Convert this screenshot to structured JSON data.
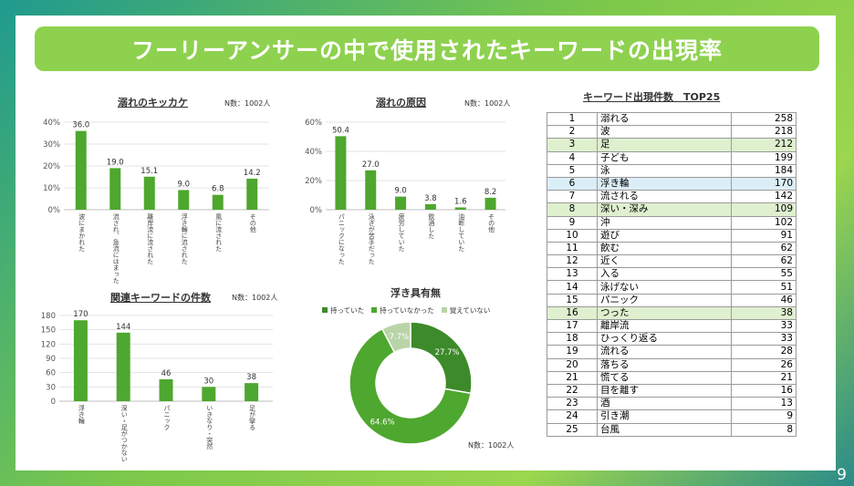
{
  "title": "フーリーアンサーの中で使用されたキーワードの出現率",
  "page_number": "9",
  "colors": {
    "bar": "#4ea72e",
    "banner": "#8ed14f",
    "highlight_green": "#dff0cf",
    "highlight_blue": "#dbeef8"
  },
  "chart_data": [
    {
      "type": "bar",
      "title": "溺れのキッカケ",
      "n_label": "N数：1002人",
      "categories": [
        "波にまかれた",
        "流され、急流にはまった",
        "離岸流に流された",
        "浮き輪に流された",
        "風に流された",
        "その他"
      ],
      "values": [
        36.0,
        19.0,
        15.1,
        9.0,
        6.8,
        14.2
      ],
      "value_labels": [
        "36.0",
        "19.0",
        "15.1",
        "9.0",
        "6.8",
        "14.2"
      ],
      "yticks": [
        "0%",
        "10%",
        "20%",
        "30%",
        "40%"
      ],
      "ylim": [
        0,
        40
      ]
    },
    {
      "type": "bar",
      "title": "溺れの原因",
      "n_label": "N数：1002人",
      "categories": [
        "パニックになった",
        "泳ぎが苦手だった",
        "疲労していた",
        "飲酒した",
        "油断していた",
        "その他"
      ],
      "values": [
        50.4,
        27.0,
        9.0,
        3.8,
        1.6,
        8.2
      ],
      "value_labels": [
        "50.4",
        "27.0",
        "9.0",
        "3.8",
        "1.6",
        "8.2"
      ],
      "yticks": [
        "0%",
        "20%",
        "40%",
        "60%"
      ],
      "ylim": [
        0,
        60
      ]
    },
    {
      "type": "bar",
      "title": "関連キーワードの件数",
      "n_label": "N数：1002人",
      "categories": [
        "浮き輪",
        "深い・足がつかない",
        "パニック",
        "いきなり・突然",
        "足が攣る"
      ],
      "values": [
        170,
        144,
        46,
        30,
        38
      ],
      "value_labels": [
        "170",
        "144",
        "46",
        "30",
        "38"
      ],
      "yticks": [
        "0",
        "30",
        "60",
        "90",
        "120",
        "150",
        "180"
      ],
      "ylim": [
        0,
        180
      ]
    },
    {
      "type": "pie",
      "title": "浮き具有無",
      "n_label": "N数：1002人",
      "legend": [
        "持っていた",
        "持っていなかった",
        "覚えていない"
      ],
      "values": [
        27.7,
        64.6,
        7.7
      ],
      "value_labels": [
        "27.7%",
        "64.6%",
        "7.7%"
      ],
      "colors": [
        "#3d8a2a",
        "#4ea72e",
        "#b9d5a8"
      ]
    }
  ],
  "keyword_table": {
    "title": "キーワード出現件数　TOP25",
    "rows": [
      {
        "rank": "1",
        "word": "溺れる",
        "count": "258",
        "hl": ""
      },
      {
        "rank": "2",
        "word": "波",
        "count": "218",
        "hl": ""
      },
      {
        "rank": "3",
        "word": "足",
        "count": "212",
        "hl": "green"
      },
      {
        "rank": "4",
        "word": "子ども",
        "count": "199",
        "hl": ""
      },
      {
        "rank": "5",
        "word": "泳",
        "count": "184",
        "hl": ""
      },
      {
        "rank": "6",
        "word": "浮き輪",
        "count": "170",
        "hl": "blue"
      },
      {
        "rank": "7",
        "word": "流される",
        "count": "142",
        "hl": ""
      },
      {
        "rank": "8",
        "word": "深い・深み",
        "count": "109",
        "hl": "green"
      },
      {
        "rank": "9",
        "word": "沖",
        "count": "102",
        "hl": ""
      },
      {
        "rank": "10",
        "word": "遊び",
        "count": "91",
        "hl": ""
      },
      {
        "rank": "11",
        "word": "飲む",
        "count": "62",
        "hl": ""
      },
      {
        "rank": "12",
        "word": "近く",
        "count": "62",
        "hl": ""
      },
      {
        "rank": "13",
        "word": "入る",
        "count": "55",
        "hl": ""
      },
      {
        "rank": "14",
        "word": "泳げない",
        "count": "51",
        "hl": ""
      },
      {
        "rank": "15",
        "word": "パニック",
        "count": "46",
        "hl": ""
      },
      {
        "rank": "16",
        "word": "つった",
        "count": "38",
        "hl": "green"
      },
      {
        "rank": "17",
        "word": "離岸流",
        "count": "33",
        "hl": ""
      },
      {
        "rank": "18",
        "word": "ひっくり返る",
        "count": "33",
        "hl": ""
      },
      {
        "rank": "19",
        "word": "流れる",
        "count": "28",
        "hl": ""
      },
      {
        "rank": "20",
        "word": "落ちる",
        "count": "26",
        "hl": ""
      },
      {
        "rank": "21",
        "word": "慌てる",
        "count": "21",
        "hl": ""
      },
      {
        "rank": "22",
        "word": "目を離す",
        "count": "16",
        "hl": ""
      },
      {
        "rank": "23",
        "word": "酒",
        "count": "13",
        "hl": ""
      },
      {
        "rank": "24",
        "word": "引き潮",
        "count": "9",
        "hl": ""
      },
      {
        "rank": "25",
        "word": "台風",
        "count": "8",
        "hl": ""
      }
    ]
  }
}
